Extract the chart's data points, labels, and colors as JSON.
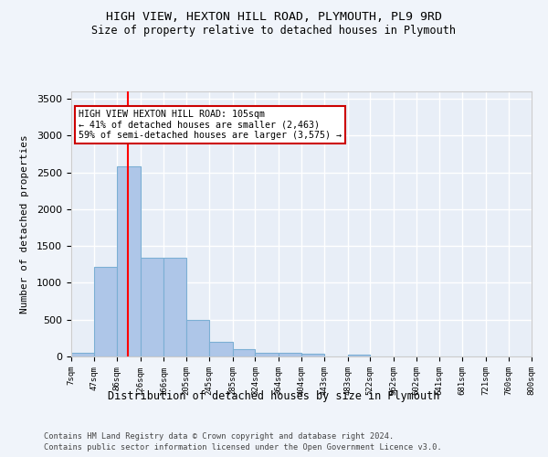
{
  "title": "HIGH VIEW, HEXTON HILL ROAD, PLYMOUTH, PL9 9RD",
  "subtitle": "Size of property relative to detached houses in Plymouth",
  "xlabel": "Distribution of detached houses by size in Plymouth",
  "ylabel": "Number of detached properties",
  "bar_color": "#aec6e8",
  "bar_edge_color": "#7bafd4",
  "background_color": "#e8eef7",
  "grid_color": "#ffffff",
  "fig_background": "#f0f4fa",
  "red_line_x": 105,
  "annotation_text": "HIGH VIEW HEXTON HILL ROAD: 105sqm\n← 41% of detached houses are smaller (2,463)\n59% of semi-detached houses are larger (3,575) →",
  "annotation_box_facecolor": "#ffffff",
  "annotation_box_edgecolor": "#cc0000",
  "footnote1": "Contains HM Land Registry data © Crown copyright and database right 2024.",
  "footnote2": "Contains public sector information licensed under the Open Government Licence v3.0.",
  "bin_edges": [
    7,
    47,
    86,
    126,
    166,
    205,
    245,
    285,
    324,
    364,
    404,
    443,
    483,
    522,
    562,
    602,
    641,
    681,
    721,
    760,
    800
  ],
  "bin_counts": [
    55,
    1220,
    2580,
    1340,
    1340,
    500,
    200,
    100,
    55,
    50,
    35,
    0,
    30,
    0,
    0,
    0,
    0,
    0,
    0,
    0
  ],
  "ylim": [
    0,
    3600
  ],
  "yticks": [
    0,
    500,
    1000,
    1500,
    2000,
    2500,
    3000,
    3500
  ]
}
